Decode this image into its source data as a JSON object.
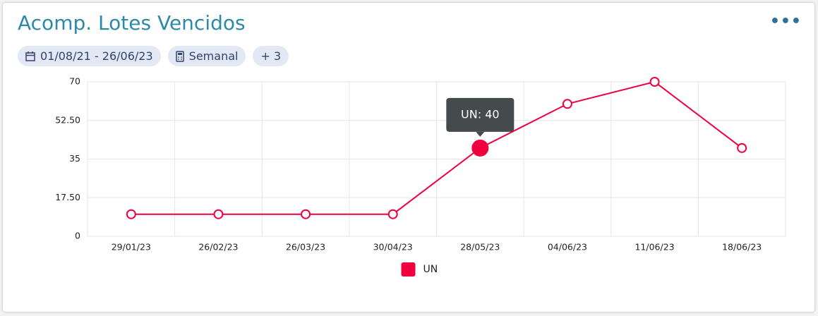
{
  "header": {
    "title": "Acomp. Lotes Vencidos",
    "filters": [
      "01/08/21 - 26/06/23",
      "Semanal",
      "+ 3"
    ]
  },
  "chart_data": {
    "type": "line",
    "categories": [
      "29/01/23",
      "26/02/23",
      "26/03/23",
      "30/04/23",
      "28/05/23",
      "04/06/23",
      "11/06/23",
      "18/06/23"
    ],
    "series": [
      {
        "name": "UN",
        "color": "#f0003c",
        "values": [
          10,
          10,
          10,
          10,
          40,
          60,
          70,
          40
        ]
      }
    ],
    "ylim": [
      0,
      70
    ],
    "yticks": [
      0,
      {
        "value": 17.5,
        "label": "17.50"
      },
      35,
      {
        "value": 52.5,
        "label": "52.50"
      },
      70
    ],
    "grid": true,
    "legend": "bottom",
    "tooltip": {
      "text": "UN: 40",
      "index": 4
    }
  }
}
